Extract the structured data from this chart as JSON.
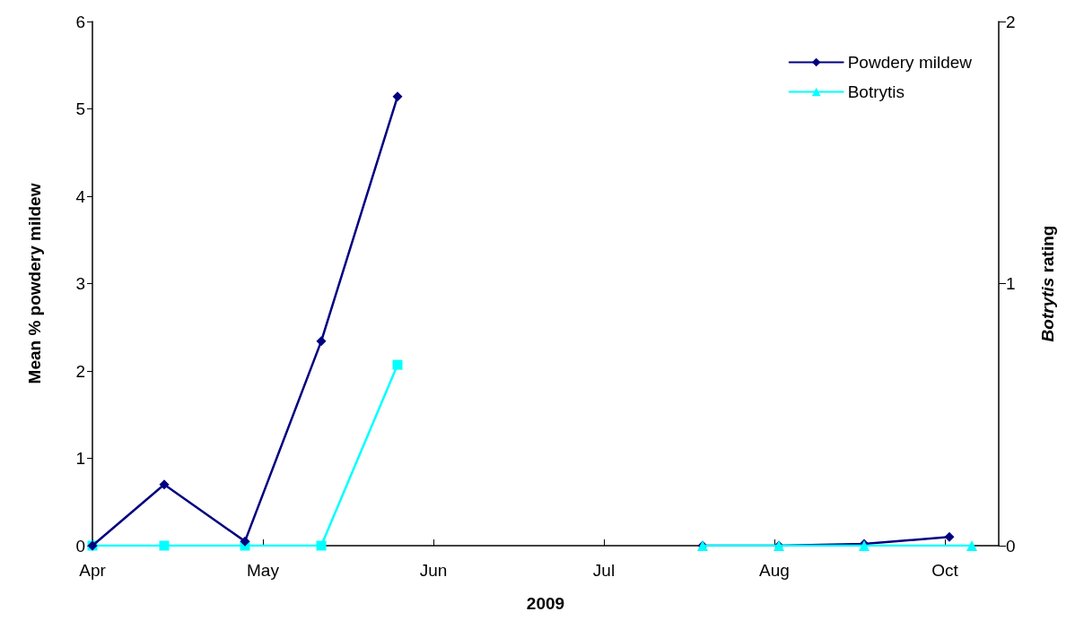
{
  "chart_data": {
    "type": "line",
    "xlabel": "2009",
    "ylabel": "Mean % powdery mildew",
    "y2label": "Botrytis rating",
    "xlim": [
      "2009-04-01",
      "2009-10-20"
    ],
    "xticks": [
      {
        "value": "2009-04-01",
        "label": "Apr"
      },
      {
        "value": "2009-05-09",
        "label": "May"
      },
      {
        "value": "2009-06-16",
        "label": "Jun"
      },
      {
        "value": "2009-07-24",
        "label": "Jul"
      },
      {
        "value": "2009-08-31",
        "label": "Aug"
      },
      {
        "value": "2009-10-08",
        "label": "Oct"
      }
    ],
    "ylim": [
      0,
      6
    ],
    "yticks": [
      0,
      1,
      2,
      3,
      4,
      5,
      6
    ],
    "y2lim": [
      0,
      2
    ],
    "y2ticks": [
      0,
      1,
      2
    ],
    "grid": false,
    "legend": "top right",
    "series": [
      {
        "name": "Powdery mildew",
        "color": "#000080",
        "marker": "diamond",
        "x": [
          "2009-04-01",
          "2009-04-17",
          "2009-05-05",
          "2009-05-22",
          "2009-06-08"
        ],
        "values": [
          0,
          0.7,
          0.05,
          2.34,
          5.14
        ]
      },
      {
        "name": "Botrytis",
        "color": "#00ffff",
        "marker": "triangle",
        "axis": "y2",
        "x": [
          "2009-08-15",
          "2009-09-01",
          "2009-09-20",
          "2009-10-14"
        ],
        "values": [
          0,
          0,
          0,
          0
        ]
      },
      {
        "color": "#00ffff",
        "marker": "square",
        "axis": "y2",
        "x": [
          "2009-04-01",
          "2009-04-17",
          "2009-05-05",
          "2009-05-22",
          "2009-06-08"
        ],
        "values": [
          0,
          0,
          0,
          0,
          0.69
        ]
      },
      {
        "color": "#000080",
        "marker": "diamond",
        "x": [
          "2009-08-15",
          "2009-09-01",
          "2009-09-20",
          "2009-10-09"
        ],
        "values": [
          0,
          0,
          0.02,
          0.1
        ]
      }
    ]
  }
}
